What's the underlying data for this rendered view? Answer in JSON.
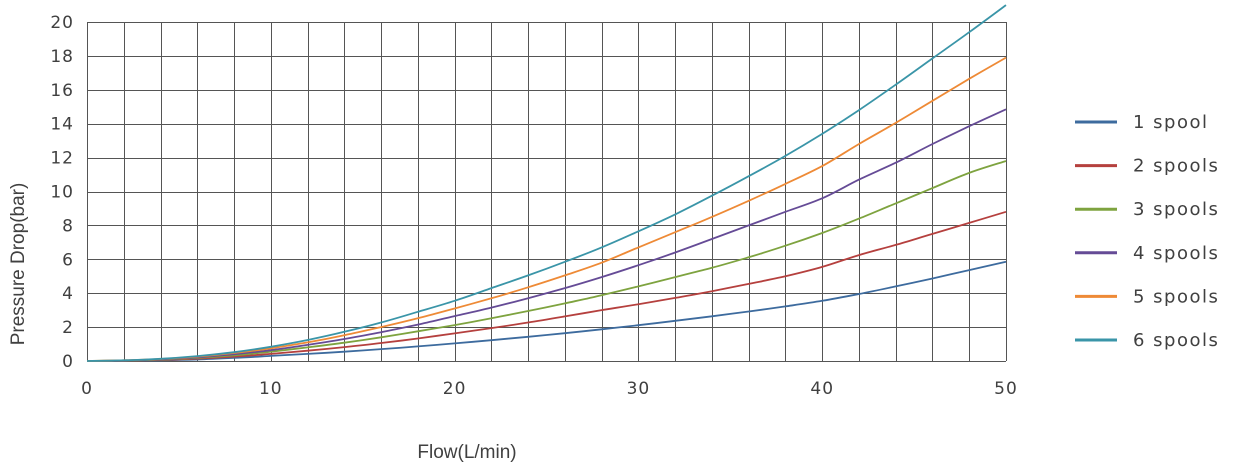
{
  "chart_data": {
    "type": "line",
    "xlabel": "Flow(L/min)",
    "ylabel": "Pressure Drop(bar)",
    "xlim": [
      0,
      50
    ],
    "ylim": [
      0,
      20
    ],
    "x_ticks": [
      0,
      10,
      20,
      30,
      40,
      50
    ],
    "y_ticks": [
      0,
      2,
      4,
      6,
      8,
      10,
      12,
      14,
      16,
      18,
      20
    ],
    "x_grid_step": 2,
    "y_grid_step": 2,
    "grid": true,
    "legend_position": "right",
    "x": [
      0,
      2,
      4,
      6,
      8,
      10,
      12,
      14,
      16,
      18,
      20,
      22,
      24,
      26,
      28,
      30,
      32,
      34,
      36,
      38,
      40,
      42,
      44,
      46,
      48,
      50
    ],
    "series": [
      {
        "name": "1 spool",
        "color": "#3d6b9e",
        "values": [
          0,
          0.01,
          0.04,
          0.09,
          0.18,
          0.3,
          0.42,
          0.55,
          0.7,
          0.86,
          1.04,
          1.23,
          1.43,
          1.64,
          1.87,
          2.11,
          2.37,
          2.64,
          2.92,
          3.22,
          3.55,
          3.95,
          4.4,
          4.87,
          5.36,
          5.86
        ]
      },
      {
        "name": "2 spools",
        "color": "#b5403e",
        "values": [
          0,
          0.02,
          0.06,
          0.14,
          0.26,
          0.42,
          0.61,
          0.82,
          1.06,
          1.33,
          1.63,
          1.94,
          2.27,
          2.63,
          3.0,
          3.35,
          3.72,
          4.12,
          4.55,
          5.0,
          5.55,
          6.25,
          6.85,
          7.5,
          8.15,
          8.8
        ]
      },
      {
        "name": "3 spools",
        "color": "#7ea33f",
        "values": [
          0,
          0.03,
          0.08,
          0.18,
          0.33,
          0.55,
          0.8,
          1.08,
          1.4,
          1.75,
          2.12,
          2.52,
          2.95,
          3.4,
          3.88,
          4.4,
          4.95,
          5.5,
          6.12,
          6.8,
          7.55,
          8.4,
          9.3,
          10.2,
          11.1,
          11.8
        ]
      },
      {
        "name": "4 spools",
        "color": "#654b96",
        "values": [
          0,
          0.03,
          0.1,
          0.22,
          0.4,
          0.64,
          0.95,
          1.3,
          1.7,
          2.15,
          2.65,
          3.15,
          3.7,
          4.3,
          4.95,
          5.65,
          6.4,
          7.2,
          8.0,
          8.8,
          9.6,
          10.7,
          11.7,
          12.8,
          13.85,
          14.85
        ]
      },
      {
        "name": "5 spools",
        "color": "#ee8a36",
        "values": [
          0,
          0.04,
          0.12,
          0.26,
          0.47,
          0.75,
          1.1,
          1.52,
          2.0,
          2.52,
          3.1,
          3.7,
          4.35,
          5.05,
          5.8,
          6.7,
          7.6,
          8.5,
          9.45,
          10.45,
          11.5,
          12.8,
          14.05,
          15.35,
          16.65,
          17.9
        ]
      },
      {
        "name": "6 spools",
        "color": "#3a95a8",
        "values": [
          0,
          0.04,
          0.13,
          0.29,
          0.52,
          0.84,
          1.24,
          1.72,
          2.27,
          2.9,
          3.55,
          4.3,
          5.05,
          5.85,
          6.7,
          7.65,
          8.65,
          9.75,
          10.9,
          12.1,
          13.4,
          14.8,
          16.3,
          17.85,
          19.4,
          21.0
        ]
      }
    ]
  }
}
